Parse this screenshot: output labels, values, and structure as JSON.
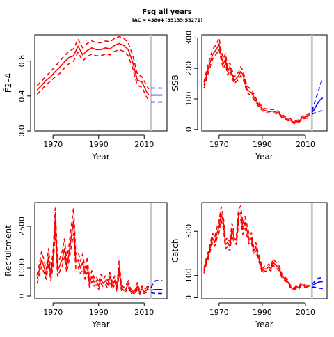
{
  "figure": {
    "title": "Fsq all years",
    "subtitle": "TAC = 43804 (35155;55271)"
  },
  "colors": {
    "history": "#ff0000",
    "projection": "#0000ff",
    "current_year_line": "#c8c8c8",
    "axes": "#000000"
  },
  "chart_data": [
    {
      "type": "line",
      "title": "",
      "xlabel": "Year",
      "ylabel": "F̄2–4",
      "xlim": [
        1962,
        2020
      ],
      "ylim": [
        0,
        1.1
      ],
      "xticks": [
        1970,
        1990,
        2010
      ],
      "yticks": [
        0.0,
        0.4,
        0.8
      ],
      "ytick_labels": [
        "0.0",
        "0.4",
        "0.8"
      ],
      "current_year": 2013,
      "history": {
        "x": [
          1963,
          1965,
          1967,
          1969,
          1971,
          1973,
          1975,
          1977,
          1979,
          1981,
          1983,
          1985,
          1987,
          1989,
          1991,
          1993,
          1995,
          1997,
          1999,
          2001,
          2003,
          2005,
          2007,
          2009,
          2011,
          2012
        ],
        "median": [
          0.47,
          0.52,
          0.58,
          0.62,
          0.68,
          0.73,
          0.79,
          0.84,
          0.86,
          0.97,
          0.87,
          0.92,
          0.95,
          0.93,
          0.93,
          0.95,
          0.94,
          0.98,
          1.0,
          0.98,
          0.93,
          0.78,
          0.58,
          0.56,
          0.45,
          0.41
        ],
        "lower": [
          0.42,
          0.47,
          0.53,
          0.57,
          0.62,
          0.66,
          0.72,
          0.77,
          0.8,
          0.9,
          0.8,
          0.85,
          0.88,
          0.86,
          0.86,
          0.88,
          0.87,
          0.91,
          0.93,
          0.91,
          0.86,
          0.71,
          0.52,
          0.5,
          0.39,
          0.35
        ],
        "upper": [
          0.52,
          0.57,
          0.63,
          0.68,
          0.74,
          0.8,
          0.86,
          0.91,
          0.94,
          1.05,
          0.95,
          1.0,
          1.03,
          1.01,
          1.01,
          1.03,
          1.02,
          1.06,
          1.08,
          1.06,
          1.01,
          0.86,
          0.65,
          0.62,
          0.52,
          0.48
        ]
      },
      "projection": {
        "x": [
          2013,
          2014,
          2015,
          2016,
          2017,
          2018
        ],
        "median": [
          0.41,
          0.41,
          0.41,
          0.41,
          0.41,
          0.41
        ],
        "lower": [
          0.33,
          0.33,
          0.33,
          0.33,
          0.33,
          0.33
        ],
        "upper": [
          0.49,
          0.49,
          0.49,
          0.49,
          0.49,
          0.49
        ]
      }
    },
    {
      "type": "line",
      "title": "",
      "xlabel": "Year",
      "ylabel": "SSB",
      "xlim": [
        1962,
        2020
      ],
      "ylim": [
        -5,
        310
      ],
      "xticks": [
        1970,
        1990,
        2010
      ],
      "yticks": [
        0,
        100,
        200,
        300
      ],
      "ytick_labels": [
        "0",
        "100",
        "200",
        "300"
      ],
      "current_year": 2013,
      "history": {
        "x": [
          1963,
          1965,
          1967,
          1969,
          1970,
          1971,
          1972,
          1973,
          1974,
          1975,
          1977,
          1979,
          1980,
          1981,
          1983,
          1985,
          1987,
          1989,
          1991,
          1993,
          1995,
          1997,
          1999,
          2001,
          2003,
          2005,
          2007,
          2009,
          2011,
          2012
        ],
        "median": [
          145,
          200,
          245,
          265,
          280,
          240,
          215,
          230,
          190,
          205,
          160,
          175,
          190,
          180,
          130,
          120,
          95,
          75,
          62,
          58,
          60,
          55,
          45,
          35,
          30,
          22,
          28,
          40,
          42,
          48
        ],
        "lower": [
          135,
          185,
          230,
          250,
          262,
          225,
          200,
          215,
          178,
          192,
          150,
          164,
          176,
          168,
          120,
          110,
          88,
          69,
          56,
          53,
          55,
          50,
          40,
          31,
          26,
          19,
          24,
          35,
          37,
          43
        ],
        "upper": [
          155,
          215,
          262,
          282,
          300,
          258,
          232,
          248,
          204,
          218,
          172,
          187,
          205,
          193,
          141,
          131,
          103,
          82,
          69,
          64,
          66,
          61,
          50,
          40,
          35,
          26,
          33,
          46,
          48,
          54
        ]
      },
      "projection": {
        "x": [
          2013,
          2014,
          2015,
          2016,
          2017,
          2018
        ],
        "median": [
          55,
          65,
          78,
          90,
          98,
          103
        ],
        "lower": [
          50,
          53,
          56,
          58,
          60,
          61
        ],
        "upper": [
          60,
          82,
          105,
          125,
          150,
          165
        ]
      }
    },
    {
      "type": "line",
      "title": "",
      "xlabel": "Year",
      "ylabel": "Recruitment",
      "xlim": [
        1962,
        2020
      ],
      "ylim": [
        -100,
        3350
      ],
      "xticks": [
        1970,
        1990,
        2010
      ],
      "yticks": [
        0,
        1000,
        2500
      ],
      "ytick_labels": [
        "0",
        "1000",
        "2500"
      ],
      "current_year": 2013,
      "history": {
        "x": [
          1963,
          1964,
          1965,
          1966,
          1967,
          1968,
          1969,
          1970,
          1971,
          1972,
          1973,
          1974,
          1975,
          1976,
          1977,
          1978,
          1979,
          1980,
          1981,
          1982,
          1983,
          1984,
          1985,
          1986,
          1987,
          1988,
          1989,
          1990,
          1991,
          1992,
          1993,
          1994,
          1995,
          1996,
          1997,
          1998,
          1999,
          2000,
          2001,
          2002,
          2003,
          2004,
          2005,
          2006,
          2007,
          2008,
          2009,
          2010,
          2011,
          2012
        ],
        "median": [
          600,
          950,
          1300,
          1050,
          750,
          1400,
          700,
          1300,
          2800,
          900,
          1100,
          1300,
          1700,
          1050,
          1500,
          2100,
          2700,
          1200,
          1300,
          1000,
          1200,
          800,
          1100,
          450,
          700,
          500,
          550,
          350,
          600,
          450,
          550,
          400,
          700,
          350,
          550,
          250,
          1000,
          300,
          200,
          250,
          450,
          150,
          180,
          120,
          350,
          120,
          250,
          150,
          200,
          350
        ],
        "lower": [
          450,
          750,
          1050,
          850,
          600,
          1150,
          550,
          1050,
          2300,
          700,
          900,
          1050,
          1400,
          850,
          1250,
          1750,
          2250,
          950,
          1050,
          800,
          950,
          600,
          850,
          320,
          520,
          360,
          400,
          240,
          450,
          320,
          400,
          280,
          520,
          240,
          400,
          160,
          780,
          200,
          120,
          170,
          320,
          90,
          110,
          70,
          240,
          70,
          170,
          90,
          130,
          250
        ],
        "upper": [
          750,
          1150,
          1600,
          1300,
          950,
          1700,
          900,
          1600,
          3150,
          1150,
          1350,
          1600,
          2050,
          1300,
          1800,
          2500,
          3150,
          1500,
          1600,
          1250,
          1500,
          1000,
          1400,
          600,
          900,
          650,
          720,
          480,
          780,
          600,
          720,
          540,
          900,
          480,
          720,
          360,
          1250,
          420,
          300,
          350,
          600,
          230,
          270,
          190,
          480,
          190,
          350,
          230,
          290,
          470
        ]
      },
      "projection": {
        "x": [
          2013,
          2014,
          2015,
          2016,
          2017,
          2018
        ],
        "median": [
          200,
          220,
          230,
          230,
          230,
          230
        ],
        "lower": [
          120,
          100,
          90,
          90,
          90,
          90
        ],
        "upper": [
          300,
          450,
          550,
          550,
          550,
          550
        ]
      }
    },
    {
      "type": "line",
      "title": "",
      "xlabel": "Year",
      "ylabel": "Catch",
      "xlim": [
        1962,
        2020
      ],
      "ylim": [
        -5,
        430
      ],
      "xticks": [
        1970,
        1990,
        2010
      ],
      "yticks": [
        0,
        100,
        300
      ],
      "ytick_labels": [
        "0",
        "100",
        "300"
      ],
      "current_year": 2013,
      "history": {
        "x": [
          1963,
          1964,
          1965,
          1966,
          1967,
          1968,
          1969,
          1970,
          1971,
          1972,
          1973,
          1974,
          1975,
          1976,
          1977,
          1978,
          1979,
          1980,
          1981,
          1982,
          1983,
          1984,
          1985,
          1986,
          1987,
          1988,
          1989,
          1990,
          1991,
          1992,
          1993,
          1994,
          1995,
          1996,
          1997,
          1998,
          1999,
          2000,
          2001,
          2002,
          2003,
          2004,
          2005,
          2006,
          2007,
          2008,
          2009,
          2010,
          2011,
          2012
        ],
        "median": [
          120,
          160,
          190,
          230,
          270,
          250,
          290,
          320,
          380,
          340,
          240,
          250,
          230,
          310,
          270,
          260,
          370,
          385,
          310,
          340,
          300,
          260,
          270,
          210,
          230,
          190,
          160,
          120,
          130,
          130,
          140,
          130,
          160,
          150,
          140,
          130,
          100,
          90,
          80,
          70,
          50,
          40,
          40,
          50,
          45,
          60,
          55,
          50,
          50,
          55
        ],
        "lower": [
          110,
          148,
          176,
          214,
          250,
          232,
          268,
          295,
          350,
          314,
          222,
          230,
          212,
          285,
          248,
          240,
          340,
          355,
          286,
          314,
          276,
          240,
          248,
          193,
          212,
          175,
          147,
          110,
          120,
          120,
          129,
          120,
          147,
          138,
          129,
          120,
          92,
          82,
          73,
          64,
          45,
          36,
          36,
          45,
          40,
          54,
          50,
          45,
          45,
          50
        ],
        "upper": [
          132,
          175,
          207,
          250,
          292,
          272,
          315,
          348,
          410,
          368,
          260,
          272,
          250,
          337,
          294,
          282,
          400,
          415,
          336,
          368,
          326,
          282,
          294,
          229,
          250,
          207,
          174,
          131,
          141,
          141,
          152,
          141,
          174,
          163,
          152,
          141,
          109,
          99,
          88,
          77,
          56,
          45,
          45,
          56,
          51,
          66,
          61,
          56,
          56,
          61
        ]
      },
      "projection": {
        "x": [
          2013,
          2014,
          2015,
          2016,
          2017,
          2018
        ],
        "median": [
          55,
          60,
          65,
          70,
          72,
          72
        ],
        "lower": [
          48,
          48,
          45,
          43,
          42,
          41
        ],
        "upper": [
          62,
          70,
          80,
          88,
          90,
          90
        ]
      }
    }
  ]
}
